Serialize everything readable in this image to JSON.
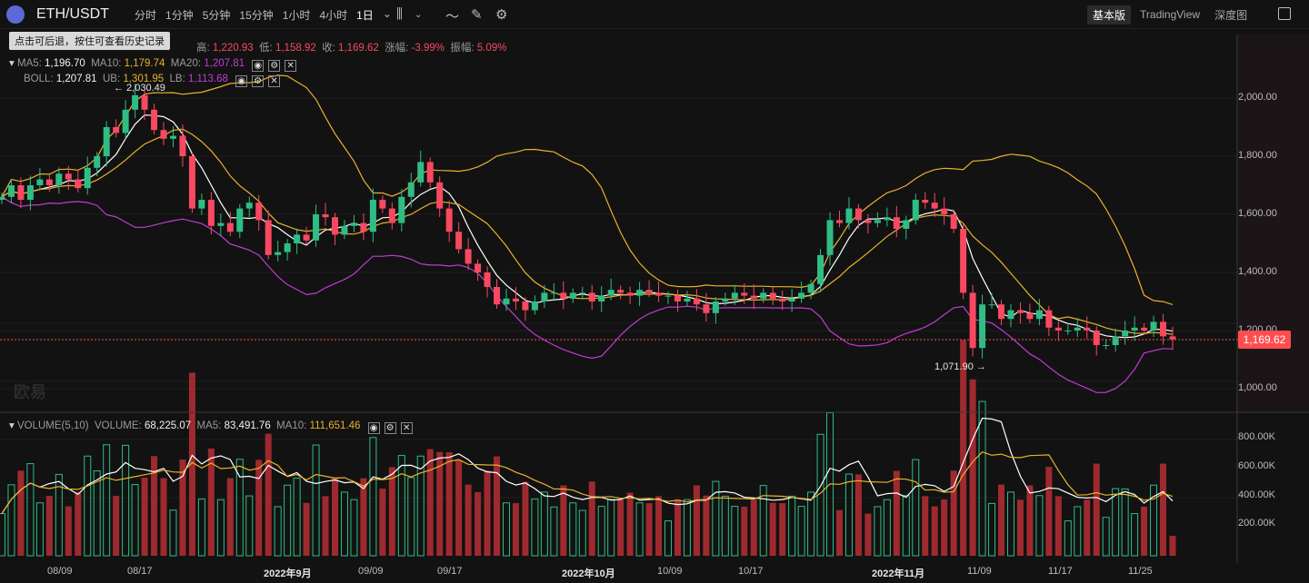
{
  "header": {
    "pair": "ETH/USDT",
    "intervals": [
      "分时",
      "1分钟",
      "5分钟",
      "15分钟",
      "1小时",
      "4小时",
      "1日"
    ],
    "active_interval": "1日",
    "views": [
      "基本版",
      "TradingView",
      "深度图"
    ]
  },
  "tooltip": "点击可后退，按住可查看历史记录",
  "ohlc": {
    "high_label": "高:",
    "high": "1,220.93",
    "low_label": "低:",
    "low": "1,158.92",
    "close_label": "收:",
    "close": "1,169.62",
    "change_label": "涨幅:",
    "change": "-3.99%",
    "amp_label": "振幅:",
    "amp": "5.09%"
  },
  "ma": {
    "ma5_label": "MA5:",
    "ma5": "1,196.70",
    "ma10_label": "MA10:",
    "ma10": "1,179.74",
    "ma20_label": "MA20:",
    "ma20": "1,207.81"
  },
  "boll": {
    "label": "BOLL:",
    "value": "1,207.81",
    "ub_label": "UB:",
    "ub": "1,301.95",
    "lb_label": "LB:",
    "lb": "1,113.68"
  },
  "volume": {
    "label": "VOLUME(5,10)",
    "vol_label": "VOLUME:",
    "vol": "68,225.07",
    "ma5_label": "MA5:",
    "ma5": "83,491.76",
    "ma10_label": "MA10:",
    "ma10": "111,651.46"
  },
  "price_axis": [
    "2,000.00",
    "1,800.00",
    "1,600.00",
    "1,400.00",
    "1,200.00",
    "1,000.00"
  ],
  "volume_axis": [
    "800.00K",
    "600.00K",
    "400.00K",
    "200.00K"
  ],
  "last_price": "1,169.62",
  "annotations": {
    "high": "← 2,030.49",
    "low": "1,071.90 →"
  },
  "x_labels": [
    {
      "t": "08/09",
      "b": false
    },
    {
      "t": "08/17",
      "b": false
    },
    {
      "t": "2022年9月",
      "b": true
    },
    {
      "t": "09/09",
      "b": false
    },
    {
      "t": "09/17",
      "b": false
    },
    {
      "t": "2022年10月",
      "b": true
    },
    {
      "t": "10/09",
      "b": false
    },
    {
      "t": "10/17",
      "b": false
    },
    {
      "t": "2022年11月",
      "b": true
    },
    {
      "t": "11/09",
      "b": false
    },
    {
      "t": "11/17",
      "b": false
    },
    {
      "t": "11/25",
      "b": false
    }
  ],
  "watermark": "欧易",
  "colors": {
    "up": "#2fbd85",
    "down": "#f84960",
    "ma5": "#ffffff",
    "ma10": "#e8b22c",
    "ma20": "#c13bd6"
  },
  "chart_data": {
    "type": "candlestick",
    "closes": [
      1660,
      1700,
      1650,
      1700,
      1720,
      1700,
      1740,
      1720,
      1690,
      1760,
      1800,
      1900,
      1880,
      1960,
      2010,
      1960,
      1890,
      1860,
      1870,
      1800,
      1620,
      1650,
      1560,
      1570,
      1540,
      1620,
      1640,
      1580,
      1460,
      1470,
      1500,
      1530,
      1510,
      1600,
      1590,
      1530,
      1560,
      1570,
      1540,
      1650,
      1620,
      1570,
      1660,
      1710,
      1780,
      1710,
      1620,
      1540,
      1480,
      1430,
      1400,
      1350,
      1290,
      1310,
      1300,
      1270,
      1300,
      1330,
      1330,
      1310,
      1330,
      1330,
      1300,
      1320,
      1340,
      1330,
      1320,
      1340,
      1330,
      1320,
      1320,
      1300,
      1310,
      1290,
      1260,
      1300,
      1310,
      1330,
      1320,
      1310,
      1330,
      1310,
      1300,
      1310,
      1330,
      1360,
      1460,
      1580,
      1570,
      1620,
      1580,
      1570,
      1580,
      1590,
      1550,
      1580,
      1650,
      1640,
      1620,
      1600,
      1550,
      1330,
      1140,
      1290,
      1290,
      1240,
      1270,
      1260,
      1240,
      1270,
      1210,
      1200,
      1200,
      1210,
      1200,
      1150,
      1150,
      1180,
      1200,
      1210,
      1200,
      1230,
      1180,
      1169.62
    ],
    "volume_last": 68225.07,
    "ylim": [
      950,
      2100
    ],
    "vol_ylim": [
      0,
      900000
    ],
    "high_point": 2030.49,
    "low_point": 1071.9
  }
}
